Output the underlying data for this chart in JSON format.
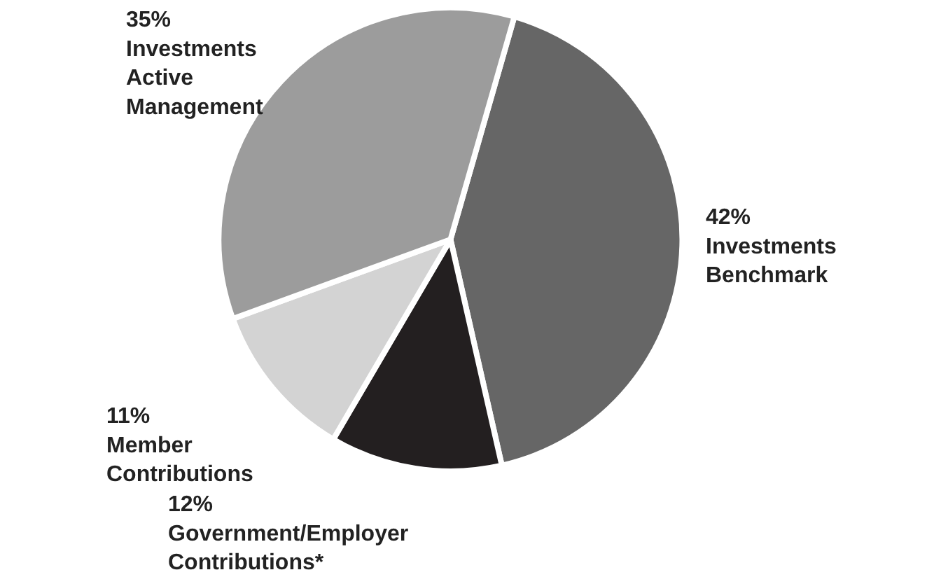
{
  "chart_data": {
    "type": "pie",
    "categories": [
      "Investments Benchmark",
      "Government/Employer Contributions*",
      "Member Contributions",
      "Investments Active Management"
    ],
    "values": [
      42,
      12,
      11,
      35
    ],
    "value_labels": [
      "42%",
      "12%",
      "11%",
      "35%"
    ],
    "colors": [
      "#666666",
      "#231f20",
      "#d3d3d3",
      "#9c9c9c"
    ],
    "legend": false
  }
}
